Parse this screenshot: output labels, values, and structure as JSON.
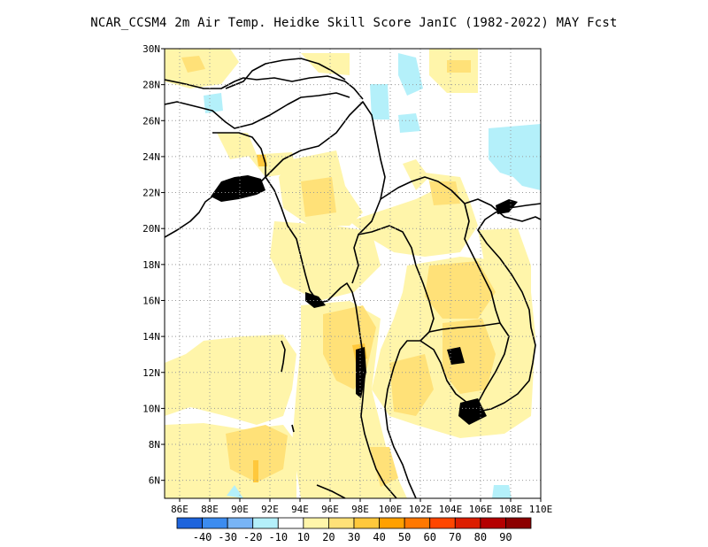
{
  "title": "NCAR_CCSM4  2m Air Temp. Heidke Skill Score JanIC (1982-2022) MAY Fcst",
  "map": {
    "lon_range": [
      85,
      110
    ],
    "lat_range": [
      5,
      30
    ],
    "lon_ticks": [
      86,
      88,
      90,
      92,
      94,
      96,
      98,
      100,
      102,
      104,
      106,
      108,
      110
    ],
    "lon_labels": [
      "86E",
      "88E",
      "90E",
      "92E",
      "94E",
      "96E",
      "98E",
      "100E",
      "102E",
      "104E",
      "106E",
      "108E",
      "110E"
    ],
    "lat_ticks": [
      6,
      8,
      10,
      12,
      14,
      16,
      18,
      20,
      22,
      24,
      26,
      28,
      30
    ],
    "lat_labels": [
      "6N",
      "8N",
      "10N",
      "12N",
      "14N",
      "16N",
      "18N",
      "20N",
      "22N",
      "24N",
      "26N",
      "28N",
      "30N"
    ],
    "gridlines": true
  },
  "colorbar": {
    "colors": [
      "#1e64dc",
      "#3c8cf0",
      "#78b4f5",
      "#b4f0fa",
      "#ffffff",
      "#fff5aa",
      "#ffe178",
      "#ffc83c",
      "#ffa000",
      "#ff7800",
      "#ff4600",
      "#dc1e00",
      "#b40000",
      "#8c0000"
    ],
    "labels": [
      "-40",
      "-30",
      "-20",
      "-10",
      "10",
      "20",
      "30",
      "40",
      "50",
      "60",
      "70",
      "80",
      "90"
    ],
    "bins": [
      -50,
      -40,
      -30,
      -20,
      -10,
      10,
      20,
      30,
      40,
      50,
      60,
      70,
      80,
      90,
      100
    ]
  },
  "field_colors": {
    "light_yellow": "#fff5aa",
    "yellow": "#ffe178",
    "orange": "#ffc83c",
    "dark_orange": "#ffa000",
    "light_blue": "#b4f0fa",
    "coast": "#000000"
  }
}
